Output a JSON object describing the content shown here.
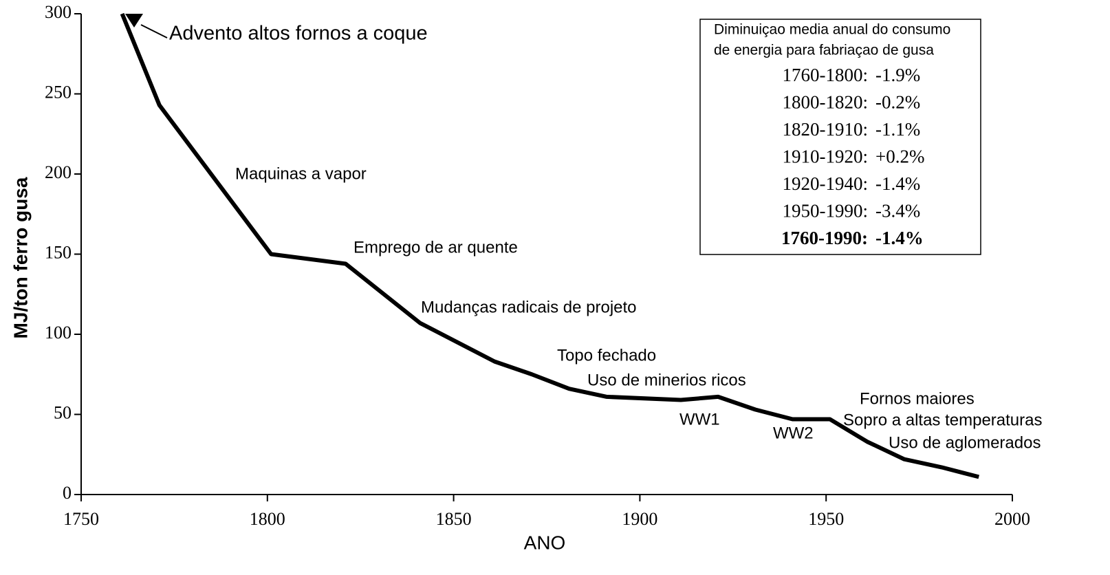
{
  "chart_data": {
    "type": "line",
    "x_label": "ANO",
    "y_label": "MJ/ton ferro gusa",
    "x": [
      1761,
      1771,
      1801,
      1821,
      1841,
      1861,
      1871,
      1881,
      1891,
      1911,
      1921,
      1931,
      1941,
      1951,
      1961,
      1971,
      1981,
      1991
    ],
    "series": [
      {
        "color": "#000000",
        "values": [
          300,
          243,
          150,
          144,
          107,
          83,
          75,
          66,
          61,
          59,
          61,
          53,
          47,
          47,
          33,
          22,
          17,
          11
        ]
      }
    ],
    "xlim": [
      1750,
      2000
    ],
    "xticks": [
      1750,
      1800,
      1850,
      1900,
      1950,
      2000
    ],
    "ylim": [
      0,
      300
    ],
    "yticks": [
      0,
      50,
      100,
      150,
      200,
      250,
      300
    ],
    "grid": false,
    "annotations": [
      "Advento altos fornos a coque",
      "Maquinas a vapor",
      "Emprego de ar quente",
      "Mudanças radicais de projeto",
      "Topo fechado",
      "Uso de minerios ricos",
      "WW1",
      "WW2",
      "Fornos maiores",
      "Sopro a altas temperaturas",
      "Uso de aglomerados"
    ],
    "box": {
      "title": [
        "Diminuiçao media anual do consumo",
        "de energia para fabriaçao de gusa"
      ],
      "rows": [
        [
          "1760-1800:",
          "-1.9%"
        ],
        [
          "1800-1820:",
          "-0.2%"
        ],
        [
          "1820-1910:",
          "-1.1%"
        ],
        [
          "1910-1920:",
          "+0.2%"
        ],
        [
          "1920-1940:",
          "-1.4%"
        ],
        [
          "1950-1990:",
          "-3.4%"
        ],
        [
          "1760-1990:",
          "-1.4%"
        ]
      ]
    }
  }
}
